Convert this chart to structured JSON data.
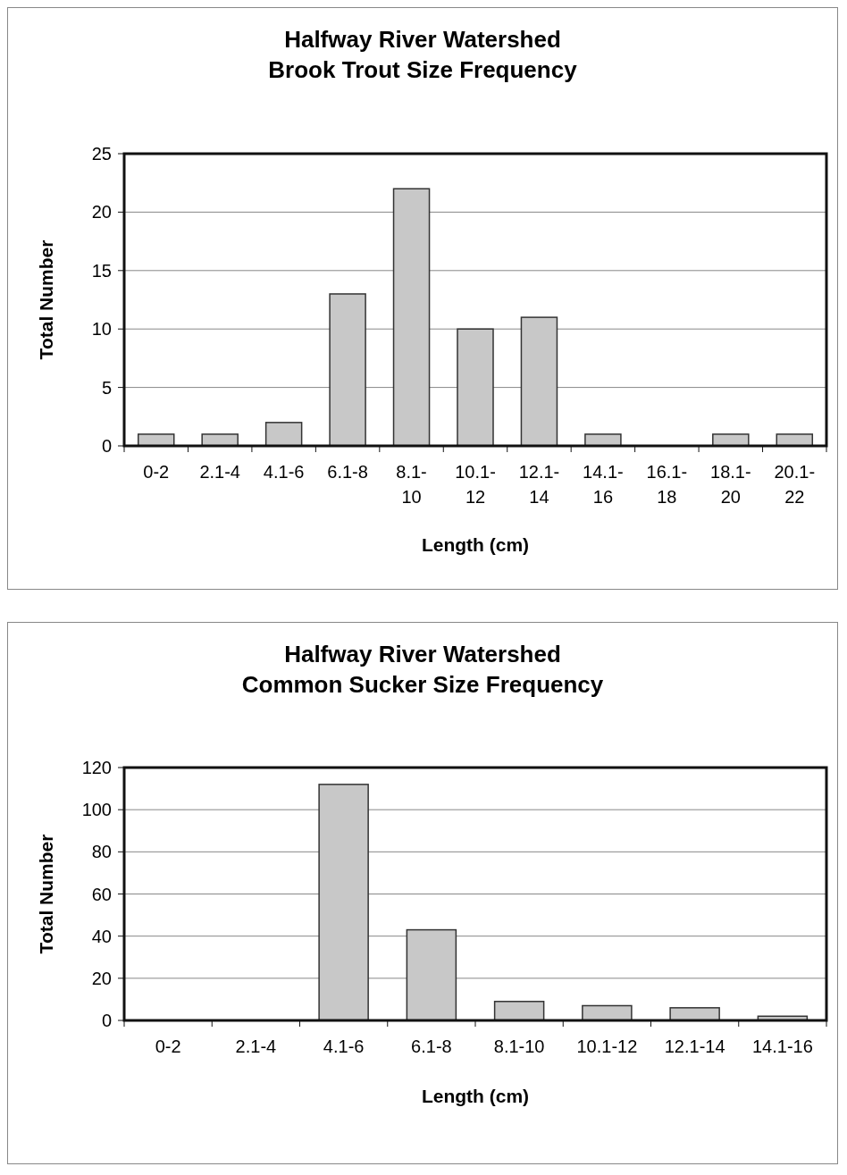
{
  "chart_data": [
    {
      "type": "bar",
      "title": "Halfway River Watershed\nBrook Trout Size Frequency",
      "xlabel": "Length (cm)",
      "ylabel": "Total Number",
      "categories": [
        "0-2",
        "2.1-4",
        "4.1-6",
        "6.1-8",
        "8.1-10",
        "10.1-12",
        "12.1-14",
        "14.1-16",
        "16.1-18",
        "18.1-20",
        "20.1-22"
      ],
      "values": [
        1,
        1,
        2,
        13,
        22,
        10,
        11,
        1,
        0,
        1,
        1
      ],
      "color": "#c8c8c8",
      "ylim": [
        0,
        25
      ],
      "yticks": [
        0,
        5,
        10,
        15,
        20,
        25
      ],
      "grid": "y"
    },
    {
      "type": "bar",
      "title": "Halfway River Watershed\nCommon Sucker Size Frequency",
      "xlabel": "Length (cm)",
      "ylabel": "Total Number",
      "categories": [
        "0-2",
        "2.1-4",
        "4.1-6",
        "6.1-8",
        "8.1-10",
        "10.1-12",
        "12.1-14",
        "14.1-16"
      ],
      "values": [
        0,
        0,
        112,
        43,
        9,
        7,
        6,
        2
      ],
      "color": "#c8c8c8",
      "ylim": [
        0,
        120
      ],
      "yticks": [
        0,
        20,
        40,
        60,
        80,
        100,
        120
      ],
      "grid": "y"
    }
  ]
}
